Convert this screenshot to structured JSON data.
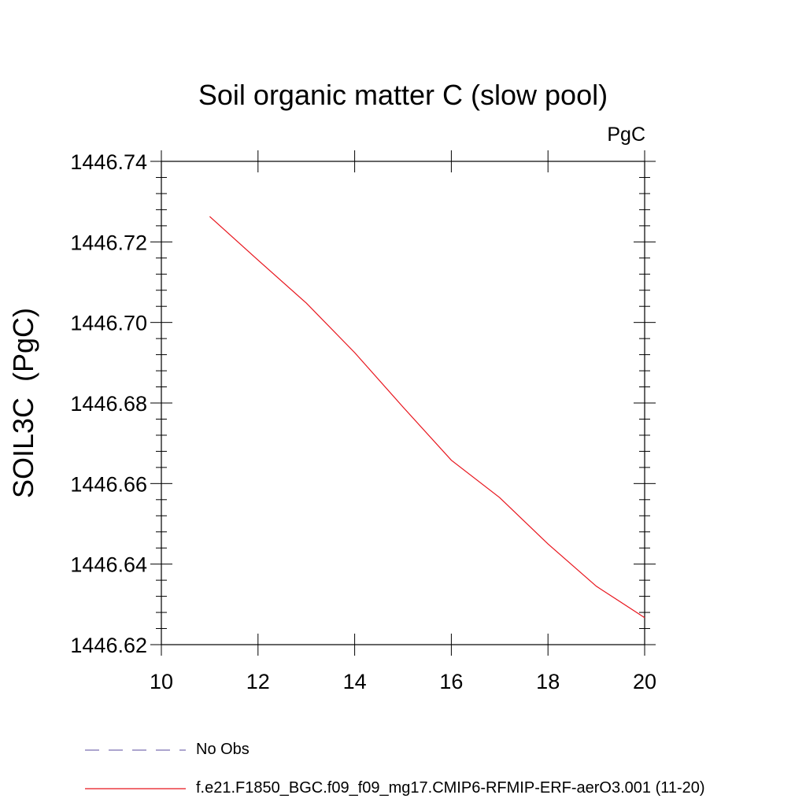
{
  "chart_data": {
    "type": "line",
    "title": "Soil organic matter C (slow pool)",
    "units_label": "PgC",
    "xlabel": "",
    "ylabel": "SOIL3C  (PgC)",
    "xlim": [
      10,
      20
    ],
    "ylim": [
      1446.62,
      1446.74
    ],
    "x_ticks": [
      "10",
      "12",
      "14",
      "16",
      "18",
      "20"
    ],
    "y_ticks": [
      "1446.62",
      "1446.64",
      "1446.66",
      "1446.68",
      "1446.70",
      "1446.72",
      "1446.74"
    ],
    "grid": false,
    "legend_position": "bottom",
    "series": [
      {
        "name": "f.e21.F1850_BGC.f09_f09_mg17.CMIP6-RFMIP-ERF-aerO3.001 (11-20)",
        "color": "#e8141c",
        "style": "solid",
        "x": [
          11,
          12,
          13,
          14,
          15,
          16,
          17,
          18,
          19,
          20
        ],
        "y": [
          1446.7263,
          1446.7155,
          1446.7048,
          1446.6925,
          1446.679,
          1446.6658,
          1446.6565,
          1446.645,
          1446.6345,
          1446.6267
        ]
      },
      {
        "name": "No Obs",
        "color": "#7b6fb0",
        "style": "dashed",
        "x": [],
        "y": []
      }
    ]
  }
}
